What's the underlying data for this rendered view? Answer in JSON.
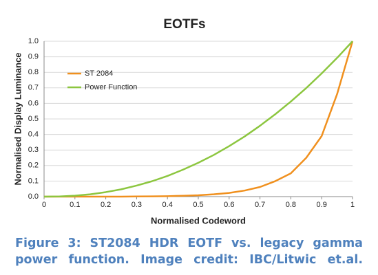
{
  "chart_data": {
    "type": "line",
    "title": "EOTFs",
    "xlabel": "Normalised Codeword",
    "ylabel": "Normalised Display Luminance",
    "x": [
      0,
      0.05,
      0.1,
      0.15,
      0.2,
      0.25,
      0.3,
      0.35,
      0.4,
      0.45,
      0.5,
      0.55,
      0.6,
      0.65,
      0.7,
      0.75,
      0.8,
      0.85,
      0.9,
      0.95,
      1
    ],
    "series": [
      {
        "name": "ST 2084",
        "color": "#f0901e",
        "values": [
          0,
          0,
          0,
          0,
          0,
          0.0002,
          0.001,
          0.0018,
          0.003,
          0.0055,
          0.009,
          0.015,
          0.024,
          0.039,
          0.062,
          0.1,
          0.15,
          0.25,
          0.39,
          0.66,
          1
        ]
      },
      {
        "name": "Power Function",
        "color": "#8cc63f",
        "values": [
          0,
          0.001,
          0.006,
          0.015,
          0.029,
          0.047,
          0.071,
          0.099,
          0.133,
          0.173,
          0.218,
          0.268,
          0.325,
          0.387,
          0.456,
          0.531,
          0.612,
          0.699,
          0.793,
          0.893,
          1
        ]
      }
    ],
    "xlim": [
      0,
      1
    ],
    "ylim": [
      0,
      1
    ],
    "xticks": [
      0,
      0.1,
      0.2,
      0.3,
      0.4,
      0.5,
      0.6,
      0.7,
      0.8,
      0.9,
      1
    ],
    "yticks": [
      {
        "value": 0,
        "label": "0.0"
      },
      {
        "value": 0.1,
        "label": "0.1"
      },
      {
        "value": 0.2,
        "label": "0.2"
      },
      {
        "value": 0.3,
        "label": "0.3"
      },
      {
        "value": 0.4,
        "label": "0.4"
      },
      {
        "value": 0.5,
        "label": "0.5"
      },
      {
        "value": 0.6,
        "label": "0.6"
      },
      {
        "value": 0.7,
        "label": "0.7"
      },
      {
        "value": 0.8,
        "label": "0.8"
      },
      {
        "value": 0.9,
        "label": "0.9"
      },
      {
        "value": 1,
        "label": "1.0"
      }
    ],
    "grid": true,
    "legend": "upper left"
  },
  "caption": "Figure 3: ST2084 HDR EOTF vs. legacy gamma power function.  Image credit: IBC/Litwic et.al."
}
